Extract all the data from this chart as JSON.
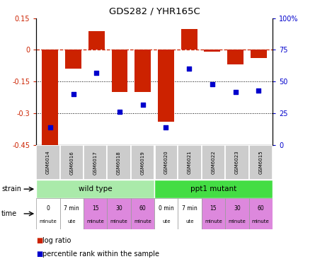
{
  "title": "GDS282 / YHR165C",
  "samples": [
    "GSM6014",
    "GSM6016",
    "GSM6017",
    "GSM6018",
    "GSM6019",
    "GSM6020",
    "GSM6021",
    "GSM6022",
    "GSM6023",
    "GSM6015"
  ],
  "log_ratio": [
    -0.46,
    -0.09,
    0.09,
    -0.2,
    -0.2,
    -0.34,
    0.1,
    -0.01,
    -0.07,
    -0.04
  ],
  "percentile": [
    14,
    40,
    57,
    26,
    32,
    14,
    60,
    48,
    42,
    43
  ],
  "ylim_left": [
    -0.45,
    0.15
  ],
  "ylim_right": [
    0,
    100
  ],
  "yticks_left": [
    -0.45,
    -0.3,
    -0.15,
    0.0,
    0.15
  ],
  "yticks_right": [
    0,
    25,
    50,
    75,
    100
  ],
  "bar_color": "#cc2200",
  "dot_color": "#0000cc",
  "strain_wild_color": "#aaeaaa",
  "strain_mutant_color": "#44dd44",
  "time_white_color": "#ffffff",
  "time_pink_color": "#dd88dd",
  "gsm_bg_color": "#cccccc",
  "time_labels": [
    {
      "line1": "0",
      "line2": "minute"
    },
    {
      "line1": "7 min",
      "line2": "ute"
    },
    {
      "line1": "15",
      "line2": "minute"
    },
    {
      "line1": "30",
      "line2": "minute"
    },
    {
      "line1": "60",
      "line2": "minute"
    },
    {
      "line1": "0 min",
      "line2": "ute"
    },
    {
      "line1": "7 min",
      "line2": "ute"
    },
    {
      "line1": "15",
      "line2": "minute"
    },
    {
      "line1": "30",
      "line2": "minute"
    },
    {
      "line1": "60",
      "line2": "minute"
    }
  ],
  "time_colors": [
    "#ffffff",
    "#ffffff",
    "#dd88dd",
    "#dd88dd",
    "#dd88dd",
    "#ffffff",
    "#ffffff",
    "#dd88dd",
    "#dd88dd",
    "#dd88dd"
  ]
}
